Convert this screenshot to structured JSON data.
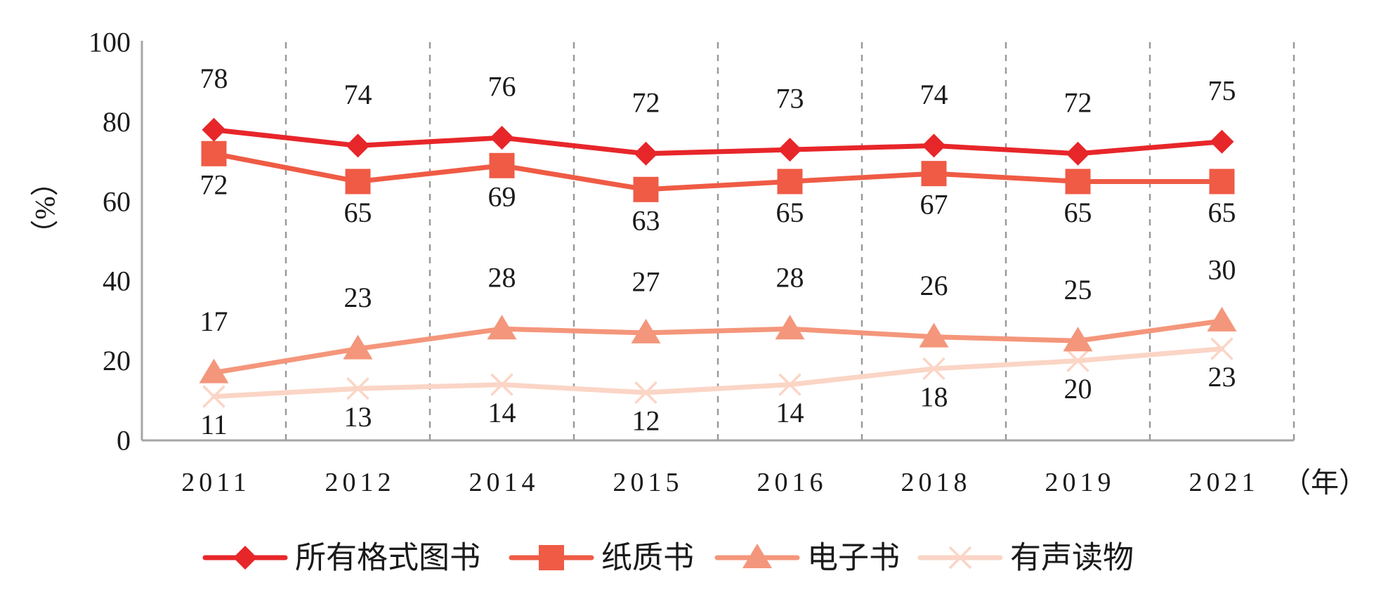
{
  "chart_data": {
    "type": "line",
    "title": "",
    "xlabel": "（年）",
    "ylabel": "（%）",
    "ylim": [
      0,
      100
    ],
    "yticks": [
      0,
      20,
      40,
      60,
      80,
      100
    ],
    "grid": "vertical dashed",
    "legend_position": "bottom",
    "categories": [
      "2011",
      "2012",
      "2014",
      "2015",
      "2016",
      "2018",
      "2019",
      "2021"
    ],
    "series": [
      {
        "name": "所有格式图书",
        "values": [
          78,
          74,
          76,
          72,
          73,
          74,
          72,
          75
        ],
        "color": "#e7262a",
        "marker": "diamond",
        "label_position": "above"
      },
      {
        "name": "纸质书",
        "values": [
          72,
          65,
          69,
          63,
          65,
          67,
          65,
          65
        ],
        "color": "#ef5b45",
        "marker": "square",
        "label_position": "below"
      },
      {
        "name": "电子书",
        "values": [
          17,
          23,
          28,
          27,
          28,
          26,
          25,
          30
        ],
        "color": "#f4967b",
        "marker": "triangle",
        "label_position": "above"
      },
      {
        "name": "有声读物",
        "values": [
          11,
          13,
          14,
          12,
          14,
          18,
          20,
          23
        ],
        "color": "#fbd5c6",
        "marker": "x",
        "label_position": "below"
      }
    ]
  }
}
